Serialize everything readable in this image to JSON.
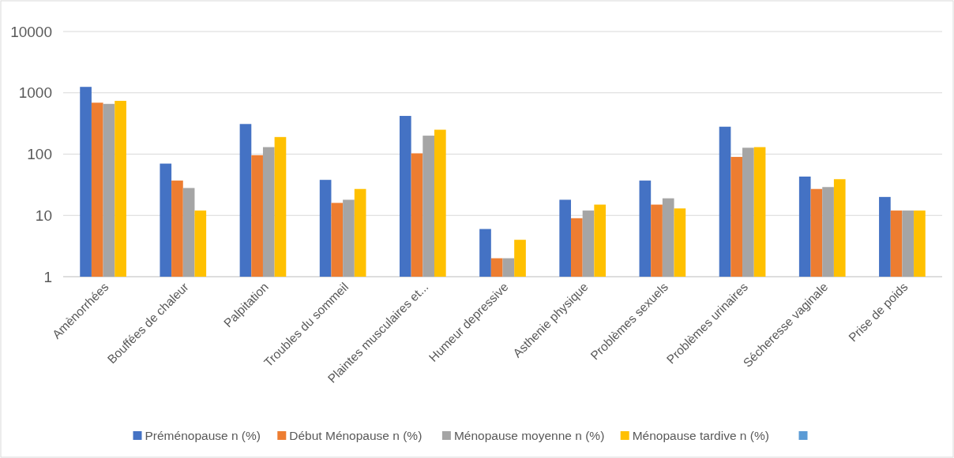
{
  "chart_data": {
    "type": "bar",
    "log": true,
    "grid": "y",
    "legend": "bottom",
    "categories": [
      "Amènorrhées",
      "Bouffées de chaleur",
      "Palpitation",
      "Troubles du sommeil",
      "Plaintes musculaires et...",
      "Humeur depressive",
      "Asthenie physique",
      "Problèmes sexuels",
      "Problèmes urinaires",
      "Sécheresse vaginale",
      "Prise de poids"
    ],
    "ylim": [
      1,
      10000
    ],
    "yticks": [
      1,
      10,
      100,
      1000,
      10000
    ],
    "series": [
      {
        "name": "Préménopause n (%)",
        "color": "#4472c4",
        "values": [
          1250,
          70,
          310,
          38,
          420,
          6,
          18,
          37,
          280,
          43,
          20
        ]
      },
      {
        "name": "Début Ménopause n (%)",
        "color": "#ed7d31",
        "values": [
          690,
          37,
          96,
          16,
          103,
          2,
          9,
          15,
          90,
          27,
          12
        ]
      },
      {
        "name": "Ménopause moyenne n (%)",
        "color": "#a5a5a5",
        "values": [
          660,
          28,
          130,
          18,
          200,
          2,
          12,
          19,
          127,
          29,
          12
        ]
      },
      {
        "name": "Ménopause tardive n (%)",
        "color": "#ffc000",
        "values": [
          740,
          12,
          190,
          27,
          250,
          4,
          15,
          13,
          130,
          39,
          12
        ]
      },
      {
        "color": "#5b9bd5",
        "values": [
          null,
          null,
          null,
          null,
          null,
          null,
          null,
          null,
          null,
          null,
          null
        ]
      }
    ]
  }
}
